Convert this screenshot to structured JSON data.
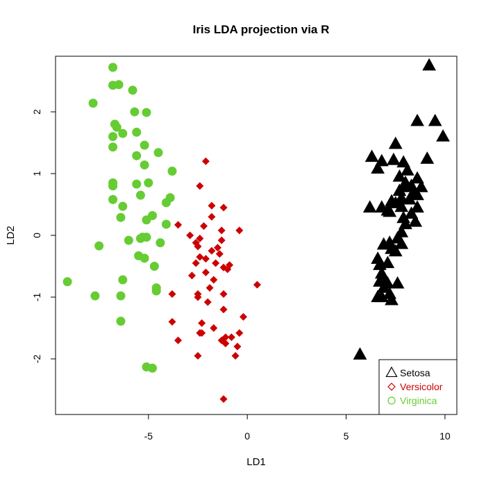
{
  "chart_data": {
    "type": "scatter",
    "title": "Iris LDA projection via R",
    "xlabel": "LD1",
    "ylabel": "LD2",
    "xlim": [
      -9.7,
      10.6
    ],
    "ylim": [
      -2.9,
      2.9
    ],
    "x_ticks": [
      -5,
      0,
      5,
      10
    ],
    "y_ticks": [
      -2,
      -1,
      0,
      1,
      2
    ],
    "grid": false,
    "legend_position": "bottom-right",
    "series": [
      {
        "name": "Setosa",
        "color": "#000000",
        "marker": "triangle",
        "points": [
          [
            9.2,
            2.75
          ],
          [
            8.6,
            1.85
          ],
          [
            9.5,
            1.85
          ],
          [
            9.9,
            1.6
          ],
          [
            7.5,
            1.48
          ],
          [
            6.3,
            1.27
          ],
          [
            7.4,
            1.22
          ],
          [
            9.1,
            1.24
          ],
          [
            6.8,
            1.2
          ],
          [
            7.9,
            1.18
          ],
          [
            6.6,
            1.08
          ],
          [
            8.1,
            1.05
          ],
          [
            7.7,
            0.95
          ],
          [
            8.6,
            0.92
          ],
          [
            8.0,
            0.85
          ],
          [
            8.3,
            0.8
          ],
          [
            8.0,
            0.78
          ],
          [
            8.8,
            0.78
          ],
          [
            7.7,
            0.72
          ],
          [
            8.4,
            0.68
          ],
          [
            8.6,
            0.65
          ],
          [
            7.8,
            0.6
          ],
          [
            8.2,
            0.58
          ],
          [
            7.3,
            0.55
          ],
          [
            7.5,
            0.52
          ],
          [
            6.2,
            0.45
          ],
          [
            7.8,
            0.46
          ],
          [
            6.8,
            0.45
          ],
          [
            8.6,
            0.45
          ],
          [
            7.1,
            0.4
          ],
          [
            7.2,
            0.38
          ],
          [
            8.3,
            0.35
          ],
          [
            7.9,
            0.28
          ],
          [
            8.5,
            0.22
          ],
          [
            8.0,
            0.18
          ],
          [
            7.8,
            0.05
          ],
          [
            7.6,
            -0.05
          ],
          [
            7.2,
            -0.12
          ],
          [
            7.8,
            -0.14
          ],
          [
            6.9,
            -0.15
          ],
          [
            7.3,
            -0.22
          ],
          [
            7.5,
            -0.26
          ],
          [
            6.6,
            -0.38
          ],
          [
            7.1,
            -0.45
          ],
          [
            6.7,
            -0.48
          ],
          [
            6.8,
            -0.62
          ],
          [
            6.9,
            -0.68
          ],
          [
            6.7,
            -0.75
          ],
          [
            7.1,
            -0.78
          ],
          [
            7.6,
            -0.78
          ],
          [
            6.9,
            -0.85
          ],
          [
            7.2,
            -0.95
          ],
          [
            6.8,
            -1.0
          ],
          [
            6.6,
            -1.0
          ],
          [
            7.3,
            -1.05
          ],
          [
            5.7,
            -1.93
          ]
        ]
      },
      {
        "name": "Versicolor",
        "color": "#cc0000",
        "marker": "diamond",
        "points": [
          [
            -2.1,
            1.2
          ],
          [
            -2.4,
            0.8
          ],
          [
            -1.8,
            0.48
          ],
          [
            -1.2,
            0.45
          ],
          [
            -1.8,
            0.3
          ],
          [
            -3.5,
            0.17
          ],
          [
            -2.2,
            0.15
          ],
          [
            -1.3,
            0.08
          ],
          [
            -0.4,
            0.08
          ],
          [
            -2.9,
            0.0
          ],
          [
            -2.4,
            -0.05
          ],
          [
            -1.3,
            -0.08
          ],
          [
            -2.6,
            -0.12
          ],
          [
            -2.5,
            -0.18
          ],
          [
            -1.5,
            -0.2
          ],
          [
            -1.8,
            -0.25
          ],
          [
            -1.4,
            -0.3
          ],
          [
            -2.4,
            -0.35
          ],
          [
            -2.1,
            -0.38
          ],
          [
            -2.6,
            -0.45
          ],
          [
            -1.6,
            -0.45
          ],
          [
            -0.9,
            -0.48
          ],
          [
            -1.2,
            -0.52
          ],
          [
            -1.0,
            -0.55
          ],
          [
            -2.1,
            -0.6
          ],
          [
            -2.8,
            -0.65
          ],
          [
            -1.7,
            -0.72
          ],
          [
            0.5,
            -0.8
          ],
          [
            -1.9,
            -0.85
          ],
          [
            -3.8,
            -0.95
          ],
          [
            -2.5,
            -0.95
          ],
          [
            -1.2,
            -0.95
          ],
          [
            -2.5,
            -1.0
          ],
          [
            -2.0,
            -1.08
          ],
          [
            -1.2,
            -1.2
          ],
          [
            -0.2,
            -1.32
          ],
          [
            -3.8,
            -1.4
          ],
          [
            -2.3,
            -1.42
          ],
          [
            -1.7,
            -1.5
          ],
          [
            -2.4,
            -1.58
          ],
          [
            -2.3,
            -1.58
          ],
          [
            -0.4,
            -1.58
          ],
          [
            -1.1,
            -1.65
          ],
          [
            -0.8,
            -1.65
          ],
          [
            -1.3,
            -1.7
          ],
          [
            -3.5,
            -1.7
          ],
          [
            -1.1,
            -1.75
          ],
          [
            -0.5,
            -1.8
          ],
          [
            -2.5,
            -1.95
          ],
          [
            -0.6,
            -1.95
          ],
          [
            -1.2,
            -2.65
          ]
        ]
      },
      {
        "name": "Virginica",
        "color": "#66cc33",
        "marker": "circle",
        "points": [
          [
            -6.8,
            2.72
          ],
          [
            -6.8,
            2.43
          ],
          [
            -6.5,
            2.44
          ],
          [
            -5.8,
            2.35
          ],
          [
            -7.8,
            2.14
          ],
          [
            -5.7,
            2.0
          ],
          [
            -5.1,
            1.99
          ],
          [
            -6.7,
            1.8
          ],
          [
            -6.6,
            1.75
          ],
          [
            -5.6,
            1.67
          ],
          [
            -6.3,
            1.65
          ],
          [
            -6.8,
            1.6
          ],
          [
            -5.2,
            1.46
          ],
          [
            -6.8,
            1.43
          ],
          [
            -4.5,
            1.34
          ],
          [
            -5.6,
            1.29
          ],
          [
            -5.2,
            1.14
          ],
          [
            -3.8,
            1.04
          ],
          [
            -5.0,
            0.85
          ],
          [
            -6.8,
            0.85
          ],
          [
            -5.6,
            0.83
          ],
          [
            -6.8,
            0.8
          ],
          [
            -5.4,
            0.65
          ],
          [
            -3.9,
            0.61
          ],
          [
            -4.1,
            0.53
          ],
          [
            -6.8,
            0.58
          ],
          [
            -6.3,
            0.47
          ],
          [
            -4.8,
            0.32
          ],
          [
            -6.4,
            0.29
          ],
          [
            -5.1,
            0.25
          ],
          [
            -4.1,
            0.18
          ],
          [
            -5.3,
            -0.03
          ],
          [
            -5.1,
            -0.03
          ],
          [
            -5.4,
            -0.05
          ],
          [
            -6.0,
            -0.08
          ],
          [
            -4.4,
            -0.12
          ],
          [
            -7.5,
            -0.17
          ],
          [
            -5.5,
            -0.33
          ],
          [
            -5.2,
            -0.37
          ],
          [
            -4.7,
            -0.5
          ],
          [
            -6.3,
            -0.72
          ],
          [
            -9.1,
            -0.75
          ],
          [
            -4.6,
            -0.85
          ],
          [
            -4.6,
            -0.9
          ],
          [
            -7.7,
            -0.98
          ],
          [
            -6.4,
            -0.98
          ],
          [
            -6.4,
            -1.39
          ],
          [
            -5.1,
            -2.13
          ],
          [
            -4.8,
            -2.15
          ]
        ]
      }
    ]
  }
}
